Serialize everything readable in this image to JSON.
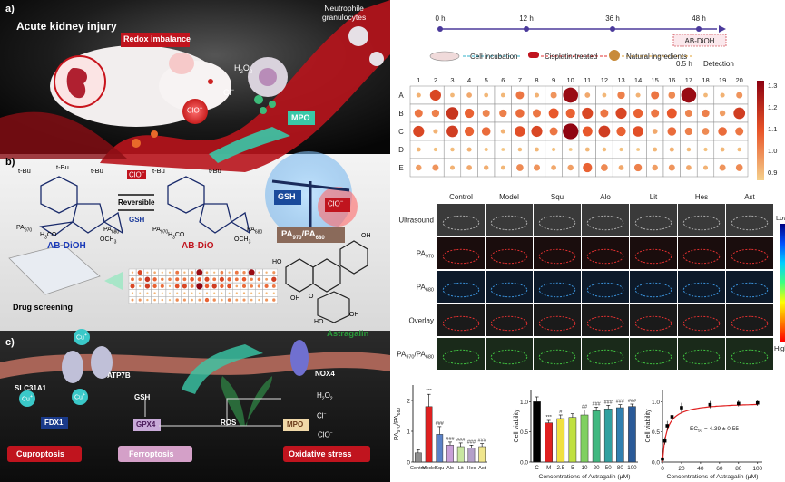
{
  "panel_a": {
    "letter": "a)",
    "title": "Acute kidney injury",
    "redox": "Redox imbalance",
    "neutrophil": "Neutrophile\ngranulocytes",
    "h2o2": "H",
    "h2o2_sub": "2",
    "h2o2_o": "O",
    "h2o2_sub2": "2",
    "cl": "Cl",
    "clo": "ClO",
    "mpo": "MPO"
  },
  "panel_b": {
    "letter": "b)",
    "tbu": "t-Bu",
    "reversible": "Reversible",
    "gsh": "GSH",
    "clo": "ClO",
    "ab_dioh": "AB-DiOH",
    "ab_dio": "AB-DiO",
    "pa970": "PA",
    "sub970": "970",
    "pa680": "PA",
    "sub680": "680",
    "och3": "OCH",
    "sub3": "3",
    "h3co": "H",
    "h3co_sub": "3",
    "h3co_tail": "CO",
    "ratio_pa1": "PA",
    "ratio_sub1": "970",
    "ratio_sep": "/PA",
    "ratio_sub2": "680",
    "drug": "Drug screening",
    "astragalin": "Astragalin",
    "oh": "OH",
    "o": "O",
    "ho": "HO"
  },
  "panel_c": {
    "letter": "c)",
    "cu": "Cu",
    "slc": "SLC31A1",
    "atp": "ATP7B",
    "gsh": "GSH",
    "fdx": "FDX1",
    "gpx": "GPX4",
    "ros": "ROS",
    "mpo": "MPO",
    "nox": "NOX4",
    "h2o2": "H",
    "cl": "Cl",
    "clo": "ClO",
    "cuproptosis": "Cuproptosis",
    "ferroptosis": "Ferroptosis",
    "oxidative": "Oxidative stress"
  },
  "timeline": {
    "t0": "0 h",
    "t12": "12 h",
    "t36": "36 h",
    "t48": "48 h",
    "probe": "AB-DiOH",
    "step1": "Cell incubation",
    "step2": "Cisplatin-treated",
    "step3": "Natural ingredients",
    "step4": "Detection",
    "halfh": "0.5 h"
  },
  "heatmap": {
    "cols": [
      "1",
      "2",
      "3",
      "4",
      "5",
      "6",
      "7",
      "8",
      "9",
      "10",
      "11",
      "12",
      "13",
      "14",
      "15",
      "16",
      "17",
      "18",
      "19",
      "20"
    ],
    "rows": [
      "A",
      "B",
      "C",
      "D",
      "E"
    ],
    "scale": [
      "1.3",
      "1.2",
      "1.1",
      "1.0",
      "0.9"
    ],
    "values": [
      [
        0.96,
        1.18,
        0.95,
        0.98,
        0.95,
        0.95,
        1.08,
        0.96,
        1.02,
        1.32,
        0.98,
        0.95,
        1.06,
        0.96,
        1.08,
        1.04,
        1.32,
        0.95,
        0.96,
        1.02
      ],
      [
        1.08,
        1.06,
        1.22,
        1.12,
        1.05,
        1.06,
        1.1,
        1.08,
        1.14,
        1.12,
        1.18,
        1.08,
        1.18,
        1.12,
        1.08,
        1.14,
        1.05,
        1.06,
        1.0,
        1.2
      ],
      [
        1.18,
        0.96,
        1.2,
        1.12,
        1.1,
        0.96,
        1.16,
        1.18,
        1.08,
        1.34,
        1.14,
        1.2,
        1.12,
        1.16,
        0.98,
        1.1,
        1.06,
        1.04,
        1.1,
        1.08
      ],
      [
        0.95,
        0.93,
        0.94,
        0.96,
        0.93,
        0.92,
        0.94,
        0.95,
        0.93,
        0.92,
        0.95,
        0.94,
        0.93,
        0.92,
        0.95,
        0.96,
        0.94,
        0.93,
        0.95,
        0.94
      ],
      [
        1.0,
        1.02,
        0.96,
        0.98,
        0.97,
        0.95,
        1.04,
        1.02,
        0.98,
        1.0,
        1.12,
        1.04,
        0.98,
        1.06,
        1.0,
        1.02,
        0.98,
        0.96,
        1.02,
        1.04
      ]
    ]
  },
  "imaging": {
    "groups": [
      "Control",
      "Model",
      "Squ",
      "Alo",
      "Lit",
      "Hes",
      "Ast"
    ],
    "rows": [
      "Ultrasound",
      "PA",
      "PA",
      "Overlay",
      "PA"
    ],
    "row_subs": [
      "",
      "970",
      "680",
      "",
      "970"
    ],
    "last_row_tail": "/PA",
    "last_row_sub2": "680",
    "scale_low": "Low",
    "scale_high": "High"
  },
  "chart_data": [
    {
      "type": "bar",
      "categories": [
        "Control",
        "Model",
        "Squ",
        "Alo",
        "Lit",
        "Hes",
        "Ast"
      ],
      "values": [
        0.3,
        1.8,
        0.9,
        0.55,
        0.5,
        0.45,
        0.5
      ],
      "errors": [
        0.1,
        0.4,
        0.25,
        0.1,
        0.12,
        0.1,
        0.1
      ],
      "sig": [
        "",
        "***",
        "###",
        "###",
        "###",
        "###",
        "###"
      ],
      "ylabel": "PA",
      "ylabel_sub": "970",
      "ylabel_tail": "/PA",
      "ylabel_sub2": "680",
      "yticks": [
        "0",
        "1",
        "2"
      ],
      "ylim": [
        0,
        2.5
      ],
      "colors": [
        "#8c8c8c",
        "#e02020",
        "#5a82c8",
        "#c8a0d8",
        "#c8e6a0",
        "#b4a0c8",
        "#f0e68c"
      ]
    },
    {
      "type": "bar",
      "categories": [
        "C",
        "M",
        "2.5",
        "5",
        "10",
        "20",
        "50",
        "80",
        "100"
      ],
      "values": [
        1.0,
        0.65,
        0.72,
        0.74,
        0.78,
        0.85,
        0.88,
        0.9,
        0.92
      ],
      "errors": [
        0.08,
        0.04,
        0.06,
        0.06,
        0.08,
        0.06,
        0.06,
        0.05,
        0.04
      ],
      "sig": [
        "",
        "***",
        "#",
        "",
        "##",
        "###",
        "###",
        "###",
        "###"
      ],
      "xlabel": "Concentrations of Astragalin (μM)",
      "ylabel": "Cell viability",
      "yticks": [
        "0.0",
        "0.5",
        "1.0"
      ],
      "ylim": [
        0,
        1.2
      ],
      "colors": [
        "#000000",
        "#e02020",
        "#f0e040",
        "#c0e040",
        "#80d060",
        "#40b880",
        "#30a0a0",
        "#3080b0",
        "#2a5a98"
      ]
    },
    {
      "type": "line",
      "x": [
        0,
        2.5,
        5,
        10,
        20,
        50,
        80,
        100
      ],
      "y": [
        0.05,
        0.35,
        0.6,
        0.75,
        0.9,
        0.95,
        0.97,
        0.98
      ],
      "errors": [
        0.02,
        0.06,
        0.08,
        0.1,
        0.08,
        0.06,
        0.05,
        0.05
      ],
      "xlabel": "Concentrations of Astragalin (μM)",
      "ylabel": "Cell viability",
      "xticks": [
        "0",
        "20",
        "40",
        "60",
        "80",
        "100"
      ],
      "yticks": [
        "0.0",
        "0.5",
        "1.0"
      ],
      "xlim": [
        0,
        105
      ],
      "ylim": [
        0,
        1.2
      ],
      "ec50_label": "EC",
      "ec50_sub": "50",
      "ec50_value": "= 4.39 ± 0.55",
      "color": "#e02020"
    }
  ],
  "colors": {
    "accent_red": "#c0141e",
    "heat_low": "#f5d08c",
    "heat_high": "#8b0010",
    "dark_bg": "#111111",
    "teal": "#3ac8a8"
  }
}
